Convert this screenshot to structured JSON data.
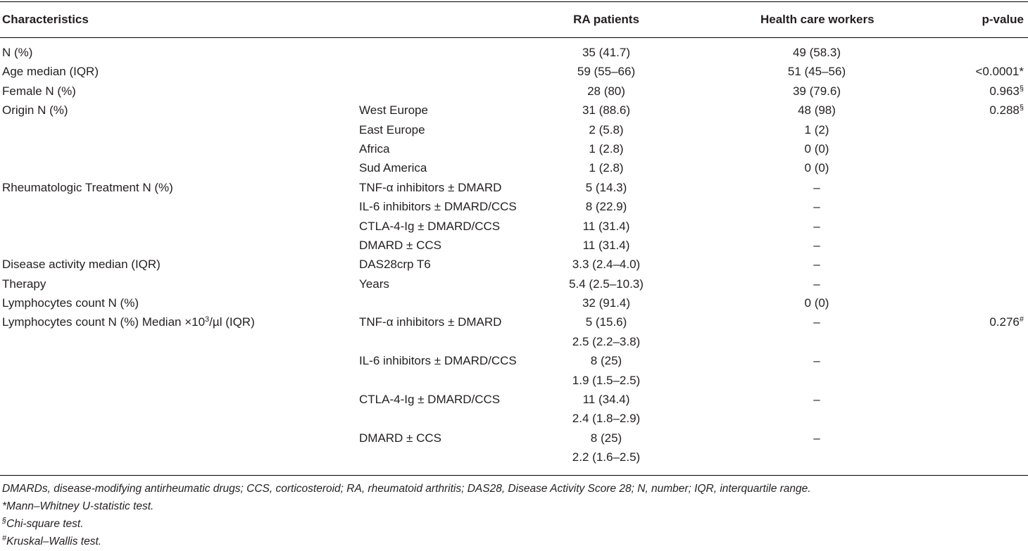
{
  "table": {
    "headers": {
      "characteristics": "Characteristics",
      "ra_patients": "RA patients",
      "health_care_workers": "Health care workers",
      "p_value": "p-value"
    },
    "rows": [
      {
        "char": "N (%)",
        "sub": "",
        "ra": "35 (41.7)",
        "hcw": "49 (58.3)",
        "p": "",
        "p_mark": ""
      },
      {
        "char": "Age median (IQR)",
        "sub": "",
        "ra": "59 (55–66)",
        "hcw": "51 (45–56)",
        "p": "<0.0001*",
        "p_mark": ""
      },
      {
        "char": "Female N (%)",
        "sub": "",
        "ra": "28 (80)",
        "hcw": "39 (79.6)",
        "p": "0.963",
        "p_mark": "§"
      },
      {
        "char": "Origin N (%)",
        "sub": "West Europe",
        "ra": "31 (88.6)",
        "hcw": "48 (98)",
        "p": "0.288",
        "p_mark": "§"
      },
      {
        "char": "",
        "sub": "East Europe",
        "ra": "2 (5.8)",
        "hcw": "1 (2)",
        "p": "",
        "p_mark": ""
      },
      {
        "char": "",
        "sub": "Africa",
        "ra": "1 (2.8)",
        "hcw": "0 (0)",
        "p": "",
        "p_mark": ""
      },
      {
        "char": "",
        "sub": "Sud America",
        "ra": "1 (2.8)",
        "hcw": "0 (0)",
        "p": "",
        "p_mark": ""
      },
      {
        "char": "Rheumatologic Treatment N (%)",
        "sub": "TNF-α inhibitors ± DMARD",
        "ra": "5 (14.3)",
        "hcw": "–",
        "p": "",
        "p_mark": ""
      },
      {
        "char": "",
        "sub": "IL-6 inhibitors ± DMARD/CCS",
        "ra": "8 (22.9)",
        "hcw": "–",
        "p": "",
        "p_mark": ""
      },
      {
        "char": "",
        "sub": "CTLA-4-Ig ± DMARD/CCS",
        "ra": "11 (31.4)",
        "hcw": "–",
        "p": "",
        "p_mark": ""
      },
      {
        "char": "",
        "sub": "DMARD ± CCS",
        "ra": "11 (31.4)",
        "hcw": "–",
        "p": "",
        "p_mark": ""
      },
      {
        "char": "Disease activity median (IQR)",
        "sub": "DAS28crp T6",
        "ra": "3.3 (2.4–4.0)",
        "hcw": "–",
        "p": "",
        "p_mark": ""
      },
      {
        "char": "Therapy",
        "sub": "Years",
        "ra": "5.4 (2.5–10.3)",
        "hcw": "–",
        "p": "",
        "p_mark": ""
      },
      {
        "char": "Lymphocytes count N (%)",
        "sub": "",
        "ra": "32 (91.4)",
        "hcw": "0 (0)",
        "p": "",
        "p_mark": ""
      },
      {
        "char": "Lymphocytes count N (%) Median ×10",
        "char_sup": "3",
        "char_tail": "/µl (IQR)",
        "sub": "TNF-α inhibitors ± DMARD",
        "ra": "5 (15.6)",
        "hcw": "–",
        "p": "0.276",
        "p_mark": "#"
      },
      {
        "char": "",
        "sub": "",
        "ra": "2.5 (2.2–3.8)",
        "hcw": "",
        "p": "",
        "p_mark": ""
      },
      {
        "char": "",
        "sub": "IL-6 inhibitors ± DMARD/CCS",
        "ra": "8 (25)",
        "hcw": "–",
        "p": "",
        "p_mark": ""
      },
      {
        "char": "",
        "sub": "",
        "ra": "1.9 (1.5–2.5)",
        "hcw": "",
        "p": "",
        "p_mark": ""
      },
      {
        "char": "",
        "sub": "CTLA-4-Ig ± DMARD/CCS",
        "ra": "11 (34.4)",
        "hcw": "–",
        "p": "",
        "p_mark": ""
      },
      {
        "char": "",
        "sub": "",
        "ra": "2.4 (1.8–2.9)",
        "hcw": "",
        "p": "",
        "p_mark": ""
      },
      {
        "char": "",
        "sub": "DMARD ± CCS",
        "ra": "8 (25)",
        "hcw": "–",
        "p": "",
        "p_mark": ""
      },
      {
        "char": "",
        "sub": "",
        "ra": "2.2 (1.6–2.5)",
        "hcw": "",
        "p": "",
        "p_mark": ""
      }
    ]
  },
  "footnotes": {
    "abbreviations": "DMARDs, disease-modifying antirheumatic drugs; CCS, corticosteroid; RA, rheumatoid arthritis; DAS28, Disease Activity Score 28; N, number; IQR, interquartile range.",
    "note1_mark": "*",
    "note1_text": "Mann–Whitney U-statistic test.",
    "note2_mark": "§",
    "note2_text": "Chi-square test.",
    "note3_mark": "#",
    "note3_text": "Kruskal–Wallis test."
  }
}
